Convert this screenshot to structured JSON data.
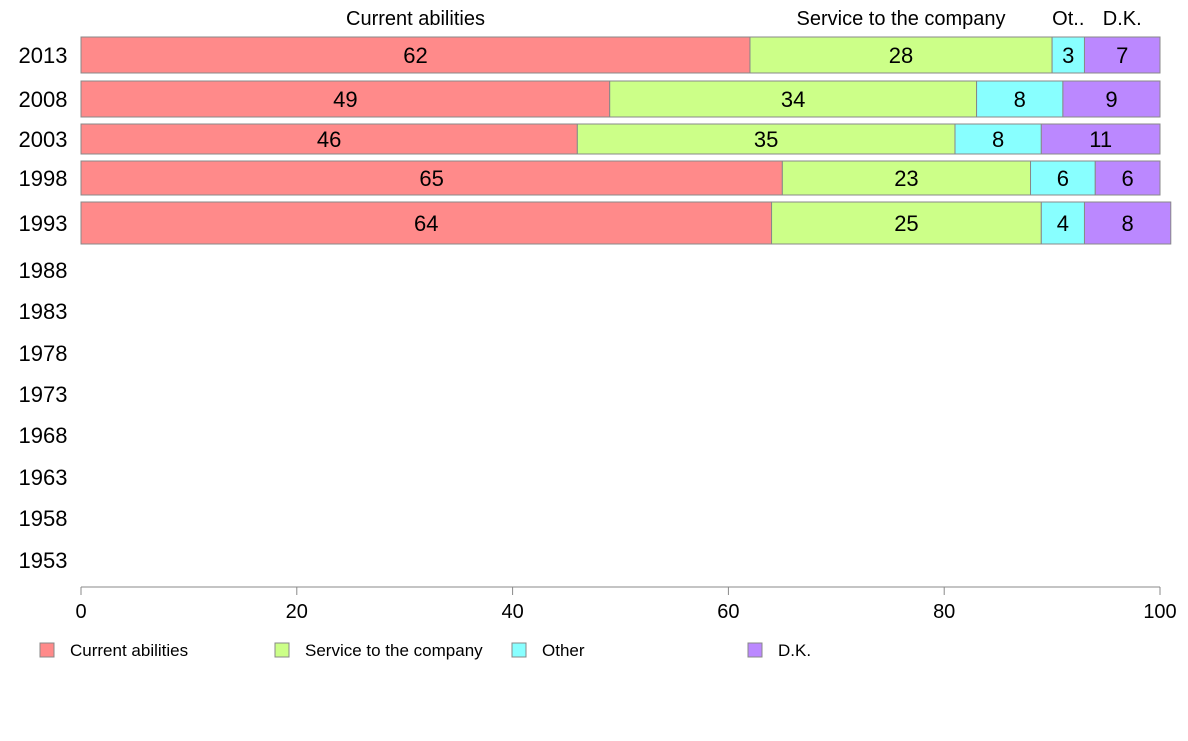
{
  "chart_data": {
    "type": "bar",
    "orientation": "horizontal",
    "stacked": true,
    "categories": [
      "2013",
      "2008",
      "2003",
      "1998",
      "1993",
      "1988",
      "1983",
      "1978",
      "1973",
      "1968",
      "1963",
      "1958",
      "1953"
    ],
    "series": [
      {
        "name": "Current abilities",
        "values": [
          62,
          49,
          46,
          65,
          64,
          null,
          null,
          null,
          null,
          null,
          null,
          null,
          null
        ]
      },
      {
        "name": "Service to the company",
        "values": [
          28,
          34,
          35,
          23,
          25,
          null,
          null,
          null,
          null,
          null,
          null,
          null,
          null
        ]
      },
      {
        "name": "Other",
        "values": [
          3,
          8,
          8,
          6,
          4,
          null,
          null,
          null,
          null,
          null,
          null,
          null,
          null
        ]
      },
      {
        "name": "D.K.",
        "values": [
          7,
          9,
          11,
          6,
          8,
          null,
          null,
          null,
          null,
          null,
          null,
          null,
          null
        ]
      }
    ],
    "header_labels": [
      "Current abilities",
      "Service to the company",
      "Ot..",
      "D.K."
    ],
    "xlim": [
      0,
      100
    ],
    "x_ticks": [
      0,
      20,
      40,
      60,
      80,
      100
    ],
    "grid": false,
    "legend_position": "bottom-left",
    "colors": [
      "#ff8a8a",
      "#ccff88",
      "#88ffff",
      "#bb88ff"
    ],
    "bar_edge_color": "#888888"
  }
}
